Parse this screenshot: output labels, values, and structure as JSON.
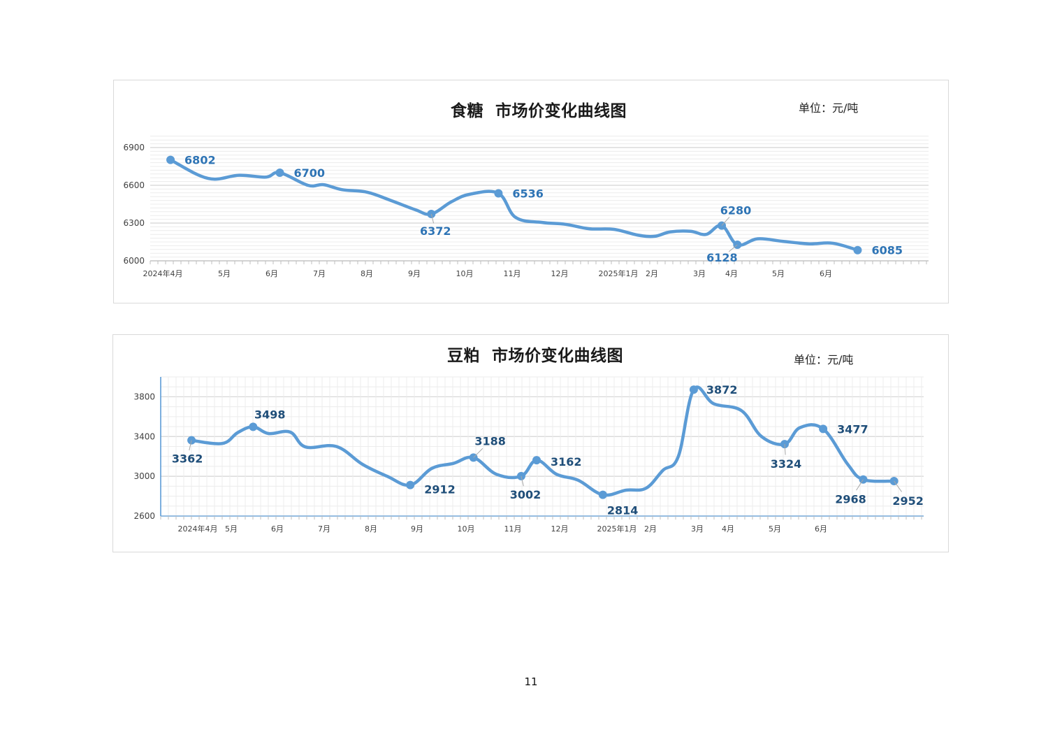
{
  "page": {
    "number": "11"
  },
  "chart_data": [
    {
      "type": "line",
      "title": "食糖  市场价变化曲线图",
      "unit": "单位：元/吨",
      "xlabel": "",
      "ylabel": "",
      "ylim": [
        6000,
        7000
      ],
      "yticks": [
        6000,
        6300,
        6600,
        6900
      ],
      "grid": "horizontal",
      "x_tick_labels": [
        "2024年4月",
        "5月",
        "6月",
        "7月",
        "8月",
        "9月",
        "10月",
        "11月",
        "12月",
        "2025年1月",
        "2月",
        "3月",
        "4月",
        "5月",
        "6月"
      ],
      "series": [
        {
          "color": "#5b9bd5",
          "points": [
            {
              "x": "2024-04-01",
              "y": 6802,
              "label": "6802"
            },
            {
              "x": "2024-04-25",
              "y": 6655
            },
            {
              "x": "2024-05-15",
              "y": 6680
            },
            {
              "x": "2024-06-01",
              "y": 6665
            },
            {
              "x": "2024-06-10",
              "y": 6700,
              "label": "6700"
            },
            {
              "x": "2024-06-28",
              "y": 6600
            },
            {
              "x": "2024-07-08",
              "y": 6605
            },
            {
              "x": "2024-07-20",
              "y": 6565
            },
            {
              "x": "2024-08-05",
              "y": 6545
            },
            {
              "x": "2024-08-20",
              "y": 6480
            },
            {
              "x": "2024-09-05",
              "y": 6405
            },
            {
              "x": "2024-09-15",
              "y": 6372,
              "label": "6372"
            },
            {
              "x": "2024-09-28",
              "y": 6470
            },
            {
              "x": "2024-10-10",
              "y": 6530
            },
            {
              "x": "2024-10-28",
              "y": 6536,
              "label": "6536"
            },
            {
              "x": "2024-11-08",
              "y": 6345
            },
            {
              "x": "2024-11-25",
              "y": 6305
            },
            {
              "x": "2024-12-10",
              "y": 6290
            },
            {
              "x": "2024-12-25",
              "y": 6255
            },
            {
              "x": "2025-01-10",
              "y": 6250
            },
            {
              "x": "2025-01-25",
              "y": 6205
            },
            {
              "x": "2025-02-05",
              "y": 6195
            },
            {
              "x": "2025-02-15",
              "y": 6230
            },
            {
              "x": "2025-02-28",
              "y": 6235
            },
            {
              "x": "2025-03-10",
              "y": 6210
            },
            {
              "x": "2025-03-20",
              "y": 6280,
              "label": "6280"
            },
            {
              "x": "2025-03-30",
              "y": 6128,
              "label": "6128"
            },
            {
              "x": "2025-04-12",
              "y": 6175
            },
            {
              "x": "2025-04-28",
              "y": 6155
            },
            {
              "x": "2025-05-15",
              "y": 6135
            },
            {
              "x": "2025-05-30",
              "y": 6140
            },
            {
              "x": "2025-06-15",
              "y": 6085,
              "label": "6085"
            }
          ]
        }
      ]
    },
    {
      "type": "line",
      "title": "豆粕  市场价变化曲线图",
      "unit": "单位：元/吨",
      "xlabel": "",
      "ylabel": "",
      "ylim": [
        2600,
        4000
      ],
      "yticks": [
        2600,
        3000,
        3400,
        3800
      ],
      "grid": "both",
      "x_tick_labels": [
        "2024年4月",
        "5月",
        "6月",
        "7月",
        "8月",
        "9月",
        "10月",
        "11月",
        "12月",
        "2025年1月",
        "2月",
        "3月",
        "4月",
        "5月",
        "6月"
      ],
      "series": [
        {
          "color": "#5b9bd5",
          "points": [
            {
              "x": "2024-04-05",
              "y": 3362,
              "label": "3362"
            },
            {
              "x": "2024-04-25",
              "y": 3330
            },
            {
              "x": "2024-05-05",
              "y": 3440
            },
            {
              "x": "2024-05-15",
              "y": 3498,
              "label": "3498"
            },
            {
              "x": "2024-05-25",
              "y": 3430
            },
            {
              "x": "2024-06-08",
              "y": 3445
            },
            {
              "x": "2024-06-18",
              "y": 3295
            },
            {
              "x": "2024-07-08",
              "y": 3300
            },
            {
              "x": "2024-07-25",
              "y": 3120
            },
            {
              "x": "2024-08-10",
              "y": 3000
            },
            {
              "x": "2024-08-25",
              "y": 2912,
              "label": "2912"
            },
            {
              "x": "2024-09-08",
              "y": 3080
            },
            {
              "x": "2024-09-22",
              "y": 3130
            },
            {
              "x": "2024-10-05",
              "y": 3188,
              "label": "3188"
            },
            {
              "x": "2024-10-20",
              "y": 3020
            },
            {
              "x": "2024-11-05",
              "y": 3002,
              "label": "3002"
            },
            {
              "x": "2024-11-15",
              "y": 3162,
              "label": "3162"
            },
            {
              "x": "2024-11-28",
              "y": 3020
            },
            {
              "x": "2024-12-12",
              "y": 2960
            },
            {
              "x": "2024-12-28",
              "y": 2814,
              "label": "2814"
            },
            {
              "x": "2025-01-12",
              "y": 2860
            },
            {
              "x": "2025-01-25",
              "y": 2880
            },
            {
              "x": "2025-02-05",
              "y": 3060
            },
            {
              "x": "2025-02-15",
              "y": 3200
            },
            {
              "x": "2025-02-25",
              "y": 3872,
              "label": "3872"
            },
            {
              "x": "2025-03-10",
              "y": 3730
            },
            {
              "x": "2025-03-28",
              "y": 3660
            },
            {
              "x": "2025-04-10",
              "y": 3400
            },
            {
              "x": "2025-04-25",
              "y": 3324,
              "label": "3324"
            },
            {
              "x": "2025-05-05",
              "y": 3490
            },
            {
              "x": "2025-05-20",
              "y": 3477,
              "label": "3477"
            },
            {
              "x": "2025-06-05",
              "y": 3120
            },
            {
              "x": "2025-06-15",
              "y": 2968,
              "label": "2968"
            },
            {
              "x": "2025-07-05",
              "y": 2952,
              "label": "2952"
            }
          ]
        }
      ]
    }
  ]
}
